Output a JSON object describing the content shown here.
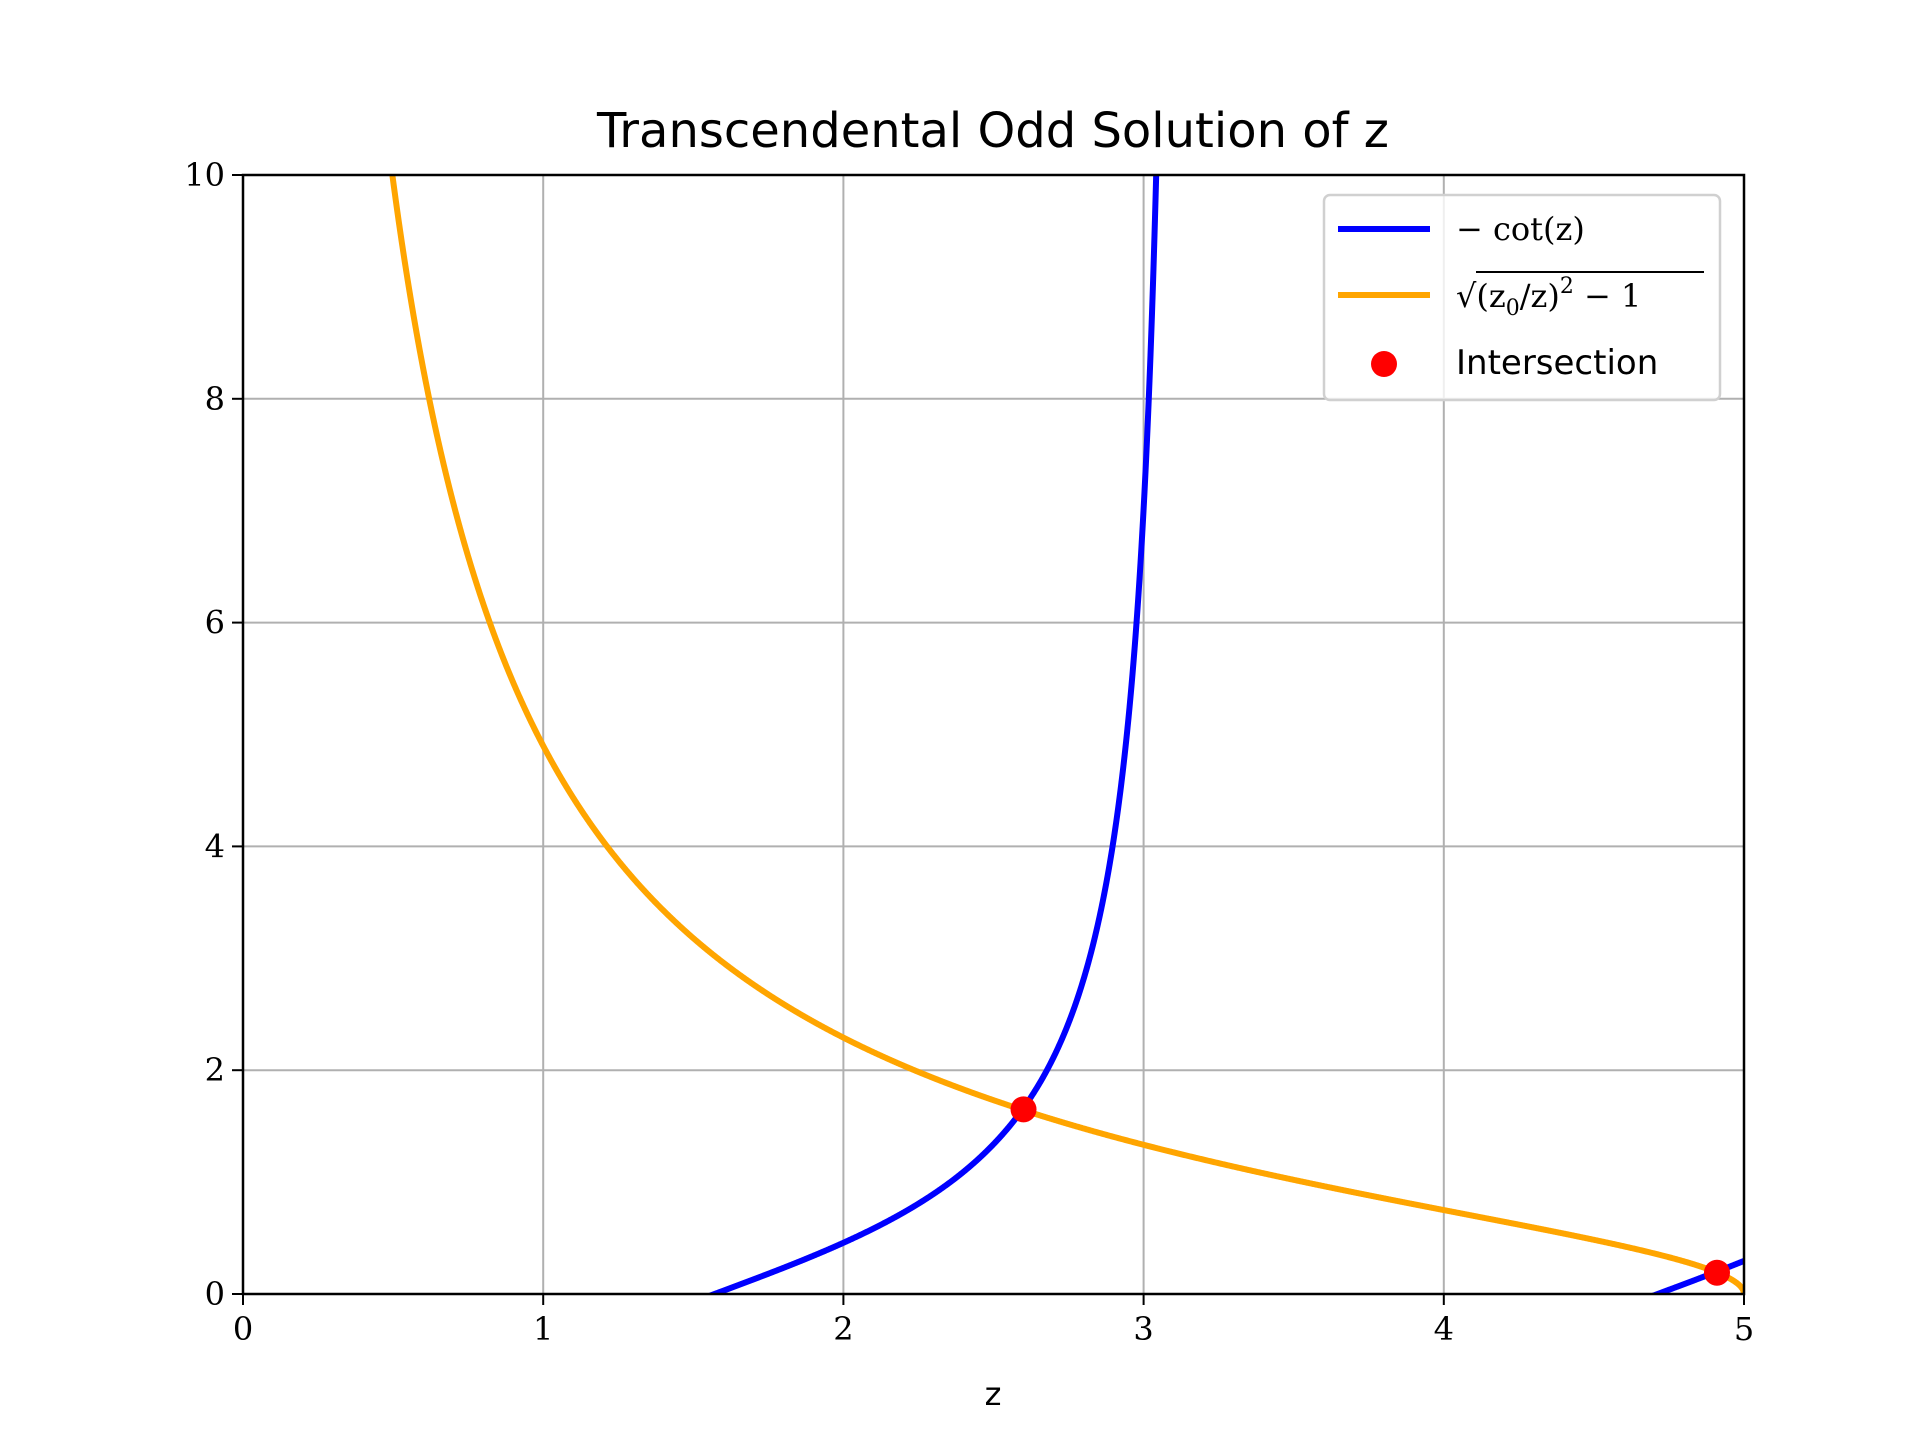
{
  "chart_data": {
    "type": "line",
    "title": "Transcendental Odd Solution of z",
    "xlabel": "z",
    "ylabel": "",
    "xlim": [
      0,
      5
    ],
    "ylim": [
      0,
      10
    ],
    "xticks": [
      "0",
      "1",
      "2",
      "3",
      "4",
      "5"
    ],
    "yticks": [
      "0",
      "2",
      "4",
      "6",
      "8",
      "10"
    ],
    "grid": true,
    "legend_position": "upper-right",
    "z0": 5,
    "series": [
      {
        "name": "−cot(z)",
        "legend_main": "− cot(z)",
        "function": "-cot(z)",
        "color": "#0000ff"
      },
      {
        "name": "√((z₀/z)² − 1)",
        "legend_main": "√(z",
        "legend_sub": "0",
        "legend_rest": "/z)",
        "legend_sup": "2",
        "legend_tail": " − 1",
        "function": "sqrt((z0/z)^2 - 1)",
        "color": "#ffa500"
      }
    ],
    "intersection": {
      "name": "Intersection",
      "color": "#ff0000",
      "points": [
        {
          "x": 2.6,
          "y": 1.65
        },
        {
          "x": 4.91,
          "y": 0.19
        }
      ]
    }
  }
}
